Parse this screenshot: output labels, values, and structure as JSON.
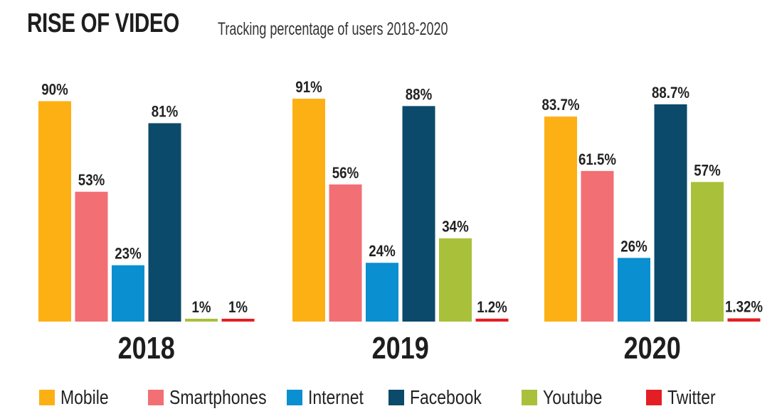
{
  "chart_data": {
    "type": "bar",
    "title": "RISE OF VIDEO",
    "subtitle": "Tracking percentage of users 2018-2020",
    "xlabel": "",
    "ylabel": "",
    "ylim": [
      0,
      100
    ],
    "grid": false,
    "legend_position": "bottom",
    "categories": [
      "2018",
      "2019",
      "2020"
    ],
    "series": [
      {
        "name": "Mobile",
        "color": "#FDB014",
        "values": [
          90,
          91,
          83.7
        ],
        "labels": [
          "90%",
          "91%",
          "83.7%"
        ]
      },
      {
        "name": "Smartphones",
        "color": "#F26F74",
        "values": [
          53,
          56,
          61.5
        ],
        "labels": [
          "53%",
          "56%",
          "61.5%"
        ]
      },
      {
        "name": "Internet",
        "color": "#0A8FD0",
        "values": [
          23,
          24,
          26
        ],
        "labels": [
          "23%",
          "24%",
          "26%"
        ]
      },
      {
        "name": "Facebook",
        "color": "#0B4A6A",
        "values": [
          81,
          88,
          88.7
        ],
        "labels": [
          "81%",
          "88%",
          "88.7%"
        ]
      },
      {
        "name": "Youtube",
        "color": "#A9C03A",
        "values": [
          1,
          34,
          57
        ],
        "labels": [
          "1%",
          "34%",
          "57%"
        ]
      },
      {
        "name": "Twitter",
        "color": "#E31E24",
        "values": [
          1,
          1.2,
          1.32
        ],
        "labels": [
          "1%",
          "1.2%",
          "1.32%"
        ]
      }
    ]
  }
}
